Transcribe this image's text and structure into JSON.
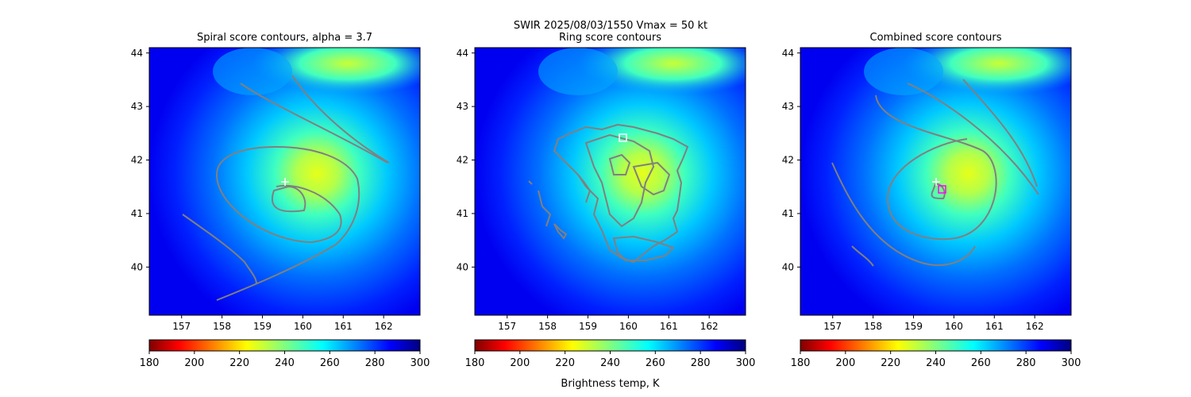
{
  "suptitle": {
    "line1": "SWIR  2025/08/03/1550    Vmax = 50 kt"
  },
  "colorbar": {
    "label": "Brightness temp, K",
    "ticks": [
      "180",
      "200",
      "220",
      "240",
      "260",
      "280",
      "300"
    ],
    "range": [
      180,
      300
    ],
    "colormap": "jet_r"
  },
  "chart_data": [
    {
      "type": "heatmap",
      "title": "Spiral score contours, alpha =  3.7",
      "xlabel": "",
      "ylabel": "",
      "xlim": [
        156.2,
        162.9
      ],
      "ylim": [
        39.1,
        44.1
      ],
      "xticks": [
        "157",
        "158",
        "159",
        "160",
        "161",
        "162"
      ],
      "yticks": [
        "40",
        "41",
        "42",
        "43",
        "44"
      ],
      "center_marker": {
        "symbol": "+",
        "lon": 159.5,
        "lat": 41.6,
        "color": "#ffffff"
      },
      "contour_color": "#808080"
    },
    {
      "type": "heatmap",
      "title": "Ring score contours",
      "xlabel": "",
      "ylabel": "",
      "xlim": [
        156.2,
        162.9
      ],
      "ylim": [
        39.1,
        44.1
      ],
      "xticks": [
        "157",
        "158",
        "159",
        "160",
        "161",
        "162"
      ],
      "yticks": [
        "40",
        "41",
        "42",
        "43",
        "44"
      ],
      "center_marker": {
        "symbol": "square",
        "lon": 159.8,
        "lat": 42.43,
        "color": "#ffffff"
      },
      "contour_color": "#808080"
    },
    {
      "type": "heatmap",
      "title": "Combined score contours",
      "xlabel": "",
      "ylabel": "",
      "xlim": [
        156.2,
        162.9
      ],
      "ylim": [
        39.1,
        44.1
      ],
      "xticks": [
        "157",
        "158",
        "159",
        "160",
        "161",
        "162"
      ],
      "yticks": [
        "40",
        "41",
        "42",
        "43",
        "44"
      ],
      "center_marker": {
        "symbol": "+",
        "lon": 159.5,
        "lat": 41.6,
        "color": "#ffffff"
      },
      "secondary_marker": {
        "symbol": "square",
        "lon": 159.63,
        "lat": 41.46,
        "color": "#ff00ff"
      },
      "contour_color": "#808080"
    }
  ]
}
